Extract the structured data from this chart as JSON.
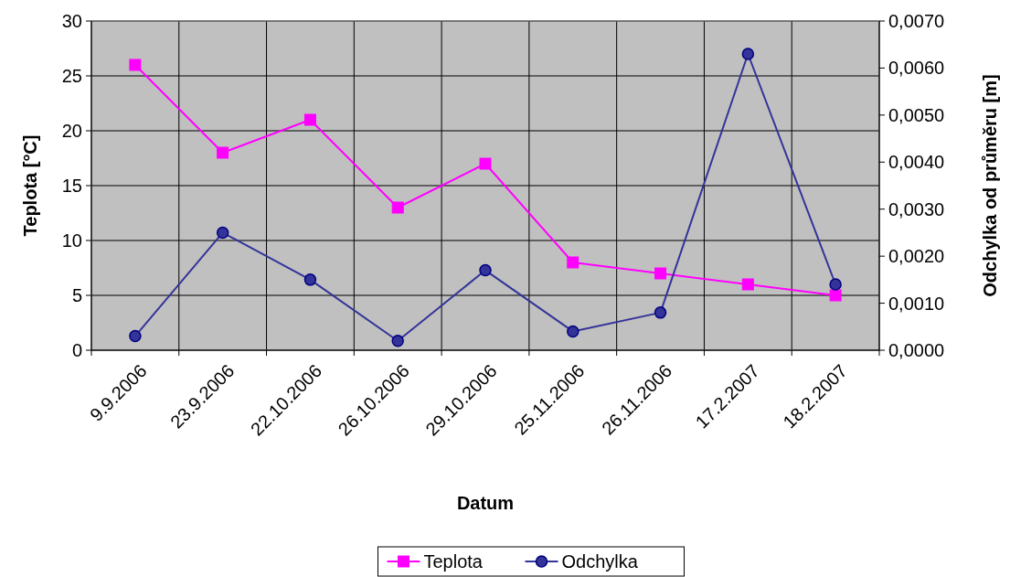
{
  "chart_data": {
    "type": "line",
    "xlabel": "Datum",
    "ylabel": "Teplota [°C]",
    "y2label": "Odchylka od průměru [m]",
    "categories": [
      "9.9.2006",
      "23.9.2006",
      "22.10.2006",
      "26.10.2006",
      "29.10.2006",
      "25.11.2006",
      "26.11.2006",
      "17.2.2007",
      "18.2.2007"
    ],
    "series": [
      {
        "name": "Teplota",
        "color": "#ff00ff",
        "marker": "square",
        "values": [
          26,
          18,
          21,
          13,
          17,
          8,
          7,
          6,
          5
        ]
      },
      {
        "name": "Odchylka",
        "color": "#333399",
        "marker": "circle",
        "axis": "y2",
        "values": [
          0.0003,
          0.0025,
          0.0015,
          0.0002,
          0.0017,
          0.0004,
          0.0008,
          0.0063,
          0.0014
        ]
      }
    ],
    "ylim": [
      0,
      30
    ],
    "yticks": [
      0,
      5,
      10,
      15,
      20,
      25,
      30
    ],
    "y2lim": [
      0,
      0.007
    ],
    "y2ticks": [
      {
        "value": 0,
        "label": "0,0000"
      },
      {
        "value": 0.001,
        "label": "0,0010"
      },
      {
        "value": 0.002,
        "label": "0,0020"
      },
      {
        "value": 0.003,
        "label": "0,0030"
      },
      {
        "value": 0.004,
        "label": "0,0040"
      },
      {
        "value": 0.005,
        "label": "0,0050"
      },
      {
        "value": 0.006,
        "label": "0,0060"
      },
      {
        "value": 0.007,
        "label": "0,0070"
      }
    ],
    "grid": true,
    "legend": "bottom"
  }
}
